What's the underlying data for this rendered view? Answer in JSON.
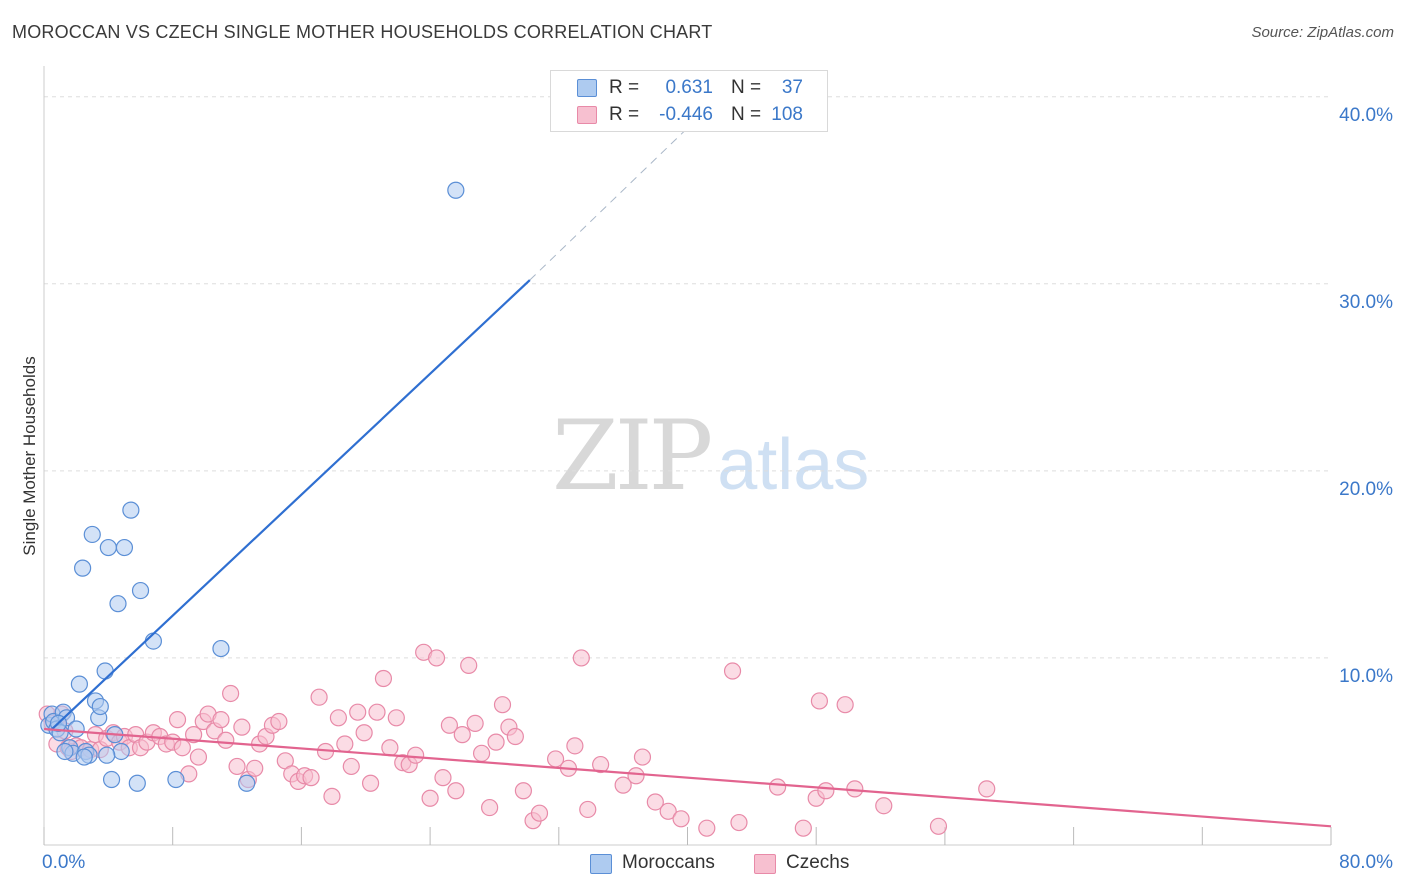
{
  "title": "MOROCCAN VS CZECH SINGLE MOTHER HOUSEHOLDS CORRELATION CHART",
  "source": "Source: ZipAtlas.com",
  "watermark": {
    "zip": "ZIP",
    "atlas": "atlas"
  },
  "legend_top": {
    "rows": [
      {
        "r_label": "R =",
        "r_value": "0.631",
        "n_label": "N =",
        "n_value": "37"
      },
      {
        "r_label": "R =",
        "r_value": "-0.446",
        "n_label": "N =",
        "n_value": "108"
      }
    ]
  },
  "colors": {
    "blue_fill": "#aecbf0",
    "blue_stroke": "#5b8fd6",
    "blue_line": "#2f6fd1",
    "pink_fill": "#f7c0d0",
    "pink_stroke": "#e88aa8",
    "pink_line": "#e2648f",
    "tick_text": "#3b78c9",
    "grid": "#dddddd"
  },
  "chart_data": {
    "type": "scatter",
    "title": "MOROCCAN VS CZECH SINGLE MOTHER HOUSEHOLDS CORRELATION CHART",
    "xlabel": "",
    "ylabel": "Single Mother Households",
    "xlim": [
      0,
      80
    ],
    "ylim": [
      0,
      41
    ],
    "x_tick_labels": [
      "0.0%",
      "80.0%"
    ],
    "y_ticks": [
      10,
      20,
      30,
      40
    ],
    "y_tick_labels": [
      "10.0%",
      "20.0%",
      "30.0%",
      "40.0%"
    ],
    "grid": true,
    "legend_position": "bottom-center",
    "series": [
      {
        "name": "Moroccans",
        "color": "#5b8fd6",
        "points": [
          [
            0.3,
            6.4
          ],
          [
            0.5,
            7.0
          ],
          [
            0.6,
            6.6
          ],
          [
            0.8,
            6.2
          ],
          [
            1.0,
            6.0
          ],
          [
            1.2,
            7.1
          ],
          [
            1.4,
            6.8
          ],
          [
            1.6,
            5.2
          ],
          [
            1.8,
            4.9
          ],
          [
            2.0,
            6.2
          ],
          [
            2.2,
            8.6
          ],
          [
            2.4,
            14.8
          ],
          [
            2.6,
            5.0
          ],
          [
            2.8,
            4.8
          ],
          [
            3.0,
            16.6
          ],
          [
            3.2,
            7.7
          ],
          [
            3.4,
            6.8
          ],
          [
            3.5,
            7.4
          ],
          [
            3.8,
            9.3
          ],
          [
            4.0,
            15.9
          ],
          [
            4.2,
            3.5
          ],
          [
            4.4,
            5.9
          ],
          [
            4.6,
            12.9
          ],
          [
            4.8,
            5.0
          ],
          [
            5.0,
            15.9
          ],
          [
            5.4,
            17.9
          ],
          [
            5.8,
            3.3
          ],
          [
            6.0,
            13.6
          ],
          [
            6.8,
            10.9
          ],
          [
            8.2,
            3.5
          ],
          [
            11.0,
            10.5
          ],
          [
            12.6,
            3.3
          ],
          [
            25.6,
            35.0
          ],
          [
            1.3,
            5.0
          ],
          [
            2.5,
            4.7
          ],
          [
            3.9,
            4.8
          ],
          [
            0.9,
            6.5
          ]
        ]
      },
      {
        "name": "Czechs",
        "color": "#e88aa8",
        "points": [
          [
            0.2,
            7.0
          ],
          [
            0.5,
            6.5
          ],
          [
            0.8,
            5.4
          ],
          [
            1.1,
            7.0
          ],
          [
            1.3,
            6.1
          ],
          [
            1.5,
            5.2
          ],
          [
            1.7,
            5.0
          ],
          [
            2.0,
            5.3
          ],
          [
            2.3,
            5.2
          ],
          [
            2.6,
            5.0
          ],
          [
            2.9,
            5.1
          ],
          [
            3.2,
            5.9
          ],
          [
            3.5,
            5.1
          ],
          [
            3.9,
            5.7
          ],
          [
            4.3,
            6.0
          ],
          [
            4.7,
            5.5
          ],
          [
            5.0,
            5.8
          ],
          [
            5.3,
            5.2
          ],
          [
            5.7,
            5.9
          ],
          [
            6.0,
            5.2
          ],
          [
            6.4,
            5.5
          ],
          [
            6.8,
            6.0
          ],
          [
            7.2,
            5.8
          ],
          [
            7.6,
            5.4
          ],
          [
            8.0,
            5.5
          ],
          [
            8.3,
            6.7
          ],
          [
            8.6,
            5.2
          ],
          [
            9.0,
            3.8
          ],
          [
            9.3,
            5.9
          ],
          [
            9.6,
            4.7
          ],
          [
            9.9,
            6.6
          ],
          [
            10.2,
            7.0
          ],
          [
            10.6,
            6.1
          ],
          [
            11.0,
            6.7
          ],
          [
            11.3,
            5.6
          ],
          [
            11.6,
            8.1
          ],
          [
            12.0,
            4.2
          ],
          [
            12.3,
            6.3
          ],
          [
            12.7,
            3.5
          ],
          [
            13.1,
            4.1
          ],
          [
            13.4,
            5.4
          ],
          [
            13.8,
            5.8
          ],
          [
            14.2,
            6.4
          ],
          [
            14.6,
            6.6
          ],
          [
            15.0,
            4.5
          ],
          [
            15.4,
            3.8
          ],
          [
            15.8,
            3.4
          ],
          [
            16.2,
            3.7
          ],
          [
            16.6,
            3.6
          ],
          [
            17.1,
            7.9
          ],
          [
            17.5,
            5.0
          ],
          [
            17.9,
            2.6
          ],
          [
            18.3,
            6.8
          ],
          [
            18.7,
            5.4
          ],
          [
            19.1,
            4.2
          ],
          [
            19.5,
            7.1
          ],
          [
            19.9,
            6.0
          ],
          [
            20.3,
            3.3
          ],
          [
            20.7,
            7.1
          ],
          [
            21.1,
            8.9
          ],
          [
            21.5,
            5.2
          ],
          [
            21.9,
            6.8
          ],
          [
            22.3,
            4.4
          ],
          [
            22.7,
            4.3
          ],
          [
            23.1,
            4.8
          ],
          [
            23.6,
            10.3
          ],
          [
            24.0,
            2.5
          ],
          [
            24.4,
            10.0
          ],
          [
            24.8,
            3.6
          ],
          [
            25.2,
            6.4
          ],
          [
            25.6,
            2.9
          ],
          [
            26.0,
            5.9
          ],
          [
            26.4,
            9.6
          ],
          [
            26.8,
            6.5
          ],
          [
            27.2,
            4.9
          ],
          [
            27.7,
            2.0
          ],
          [
            28.1,
            5.5
          ],
          [
            28.5,
            7.5
          ],
          [
            28.9,
            6.3
          ],
          [
            29.3,
            5.8
          ],
          [
            29.8,
            2.9
          ],
          [
            30.4,
            1.3
          ],
          [
            30.8,
            1.7
          ],
          [
            31.8,
            4.6
          ],
          [
            32.6,
            4.1
          ],
          [
            33.0,
            5.3
          ],
          [
            33.4,
            10.0
          ],
          [
            33.8,
            1.9
          ],
          [
            34.6,
            4.3
          ],
          [
            36.0,
            3.2
          ],
          [
            36.8,
            3.7
          ],
          [
            37.2,
            4.7
          ],
          [
            38.0,
            2.3
          ],
          [
            38.8,
            1.8
          ],
          [
            39.6,
            1.4
          ],
          [
            41.2,
            0.9
          ],
          [
            42.8,
            9.3
          ],
          [
            43.2,
            1.2
          ],
          [
            45.6,
            3.1
          ],
          [
            47.2,
            0.9
          ],
          [
            48.0,
            2.5
          ],
          [
            48.2,
            7.7
          ],
          [
            48.6,
            2.9
          ],
          [
            49.8,
            7.5
          ],
          [
            50.4,
            3.0
          ],
          [
            52.2,
            2.1
          ],
          [
            55.6,
            1.0
          ],
          [
            58.6,
            3.0
          ]
        ]
      }
    ],
    "trend_lines": [
      {
        "series": "Moroccans",
        "solid": [
          [
            0.5,
            6.2
          ],
          [
            30.2,
            30.2
          ]
        ],
        "dashed": [
          [
            30.2,
            30.2
          ],
          [
            41.3,
            39.4
          ]
        ]
      },
      {
        "series": "Czechs",
        "solid": [
          [
            0,
            6.2
          ],
          [
            80,
            1.0
          ]
        ]
      }
    ]
  },
  "legend_bottom": [
    {
      "label": "Moroccans"
    },
    {
      "label": "Czechs"
    }
  ]
}
